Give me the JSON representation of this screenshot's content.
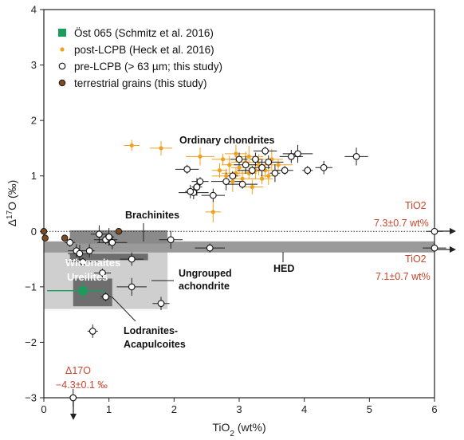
{
  "chart_data": {
    "type": "scatter",
    "xlabel": "TiO2 (wt%)",
    "ylabel": "Δ17O (‰)",
    "xlim": [
      0,
      6
    ],
    "ylim": [
      -3,
      4
    ],
    "xticks": [
      0,
      1,
      2,
      3,
      4,
      5,
      6
    ],
    "yticks": [
      -3,
      -2,
      -1,
      0,
      1,
      2,
      3,
      4
    ],
    "grid": false,
    "legend_position": "top-left",
    "colors": {
      "ost065": "#1a9c5a",
      "post_lcpb": "#f0a020",
      "pre_lcpb_face": "#ffffff",
      "terrestrial": "#7a4a22",
      "annotation_red": "#c8452a",
      "gray_band": "#9a9a9a",
      "light_box": "#cfcfcf",
      "dark_box": "#6e6e6e"
    },
    "legend": [
      {
        "key": "ost065",
        "marker": "square",
        "label": "Öst 065 (Schmitz et al. 2016)"
      },
      {
        "key": "post_lcpb",
        "marker": "small-dot",
        "label": "post-LCPB (Heck et al. 2016)"
      },
      {
        "key": "pre_lcpb",
        "marker": "open-circle",
        "label": "pre-LCPB (> 63 µm; this study)"
      },
      {
        "key": "terrestrial",
        "marker": "filled-circle",
        "label": "terrestrial grains (this study)"
      }
    ],
    "series": [
      {
        "name": "pre-LCPB (> 63 µm; this study)",
        "points": [
          {
            "x": 0.4,
            "y": -0.2
          },
          {
            "x": 0.5,
            "y": -0.35
          },
          {
            "x": 0.55,
            "y": -0.4
          },
          {
            "x": 0.6,
            "y": -0.55
          },
          {
            "x": 0.7,
            "y": -0.35
          },
          {
            "x": 0.85,
            "y": -0.05
          },
          {
            "x": 0.95,
            "y": -0.15
          },
          {
            "x": 1.05,
            "y": -0.2
          },
          {
            "x": 1.0,
            "y": -0.1
          },
          {
            "x": 0.9,
            "y": -0.75
          },
          {
            "x": 1.35,
            "y": -0.5
          },
          {
            "x": 1.35,
            "y": -1.0
          },
          {
            "x": 0.95,
            "y": -1.18
          },
          {
            "x": 1.8,
            "y": -1.3
          },
          {
            "x": 1.95,
            "y": -0.15
          },
          {
            "x": 2.55,
            "y": -0.3
          },
          {
            "x": 0.75,
            "y": -1.8
          },
          {
            "x": 0.45,
            "y": -3.0
          },
          {
            "x": 2.2,
            "y": 1.12
          },
          {
            "x": 2.3,
            "y": 0.7
          },
          {
            "x": 2.35,
            "y": 0.8
          },
          {
            "x": 2.4,
            "y": 0.9
          },
          {
            "x": 2.6,
            "y": 0.65
          },
          {
            "x": 2.8,
            "y": 0.9
          },
          {
            "x": 2.9,
            "y": 1.0
          },
          {
            "x": 3.0,
            "y": 1.3
          },
          {
            "x": 3.1,
            "y": 1.2
          },
          {
            "x": 3.2,
            "y": 1.1
          },
          {
            "x": 3.25,
            "y": 1.3
          },
          {
            "x": 3.35,
            "y": 1.15
          },
          {
            "x": 3.4,
            "y": 1.45
          },
          {
            "x": 3.45,
            "y": 1.25
          },
          {
            "x": 3.55,
            "y": 1.05
          },
          {
            "x": 3.7,
            "y": 1.1
          },
          {
            "x": 3.8,
            "y": 1.35
          },
          {
            "x": 3.9,
            "y": 1.4
          },
          {
            "x": 4.05,
            "y": 1.1
          },
          {
            "x": 4.3,
            "y": 1.15
          },
          {
            "x": 4.8,
            "y": 1.35
          },
          {
            "x": 3.05,
            "y": 0.85
          },
          {
            "x": 2.25,
            "y": 0.72
          },
          {
            "x": 6.0,
            "y": 0.0
          },
          {
            "x": 6.0,
            "y": -0.3
          }
        ]
      },
      {
        "name": "post-LCPB (Heck et al. 2016)",
        "points": [
          {
            "x": 1.35,
            "y": 1.55
          },
          {
            "x": 1.8,
            "y": 1.5
          },
          {
            "x": 2.4,
            "y": 1.35
          },
          {
            "x": 2.6,
            "y": 0.35
          },
          {
            "x": 2.75,
            "y": 1.3
          },
          {
            "x": 2.8,
            "y": 1.0
          },
          {
            "x": 2.85,
            "y": 1.2
          },
          {
            "x": 2.9,
            "y": 0.9
          },
          {
            "x": 2.95,
            "y": 1.05
          },
          {
            "x": 3.0,
            "y": 1.15
          },
          {
            "x": 3.05,
            "y": 0.95
          },
          {
            "x": 3.1,
            "y": 1.25
          },
          {
            "x": 3.15,
            "y": 1.05
          },
          {
            "x": 3.2,
            "y": 0.8
          },
          {
            "x": 3.25,
            "y": 1.1
          },
          {
            "x": 3.3,
            "y": 1.2
          },
          {
            "x": 3.35,
            "y": 0.95
          },
          {
            "x": 3.4,
            "y": 1.1
          },
          {
            "x": 3.45,
            "y": 1.0
          },
          {
            "x": 3.5,
            "y": 1.3
          },
          {
            "x": 3.6,
            "y": 1.2
          },
          {
            "x": 2.7,
            "y": 1.1
          },
          {
            "x": 2.95,
            "y": 1.4
          },
          {
            "x": 3.15,
            "y": 1.35
          }
        ]
      },
      {
        "name": "Öst 065 (Schmitz et al. 2016)",
        "points": [
          {
            "x": 0.6,
            "y": -1.07
          }
        ]
      },
      {
        "name": "terrestrial grains (this study)",
        "points": [
          {
            "x": 0.0,
            "y": 0.0
          },
          {
            "x": 0.02,
            "y": -0.12
          },
          {
            "x": 0.32,
            "y": -0.12
          },
          {
            "x": 1.15,
            "y": 0.0
          }
        ]
      }
    ],
    "annotations": {
      "ordinary_chondrites": "Ordinary chondrites",
      "brachinites": "Brachinites",
      "hed": "HED",
      "winonaites": "Winonaites",
      "ureilites": "Ureilites",
      "ungrouped_line1": "Ungrouped",
      "ungrouped_line2": "achondrite",
      "lodranites_line1": "Lodranites-",
      "lodranites_line2": "Acapulcoites",
      "tio2_upper_label": "TiO2",
      "tio2_upper_value": "7.3±0.7 wt%",
      "tio2_lower_label": "TiO2",
      "tio2_lower_value": "7.1±0.7 wt%",
      "delta_label": "Δ17O",
      "delta_value": "−4.3±0.1 ‰"
    }
  }
}
